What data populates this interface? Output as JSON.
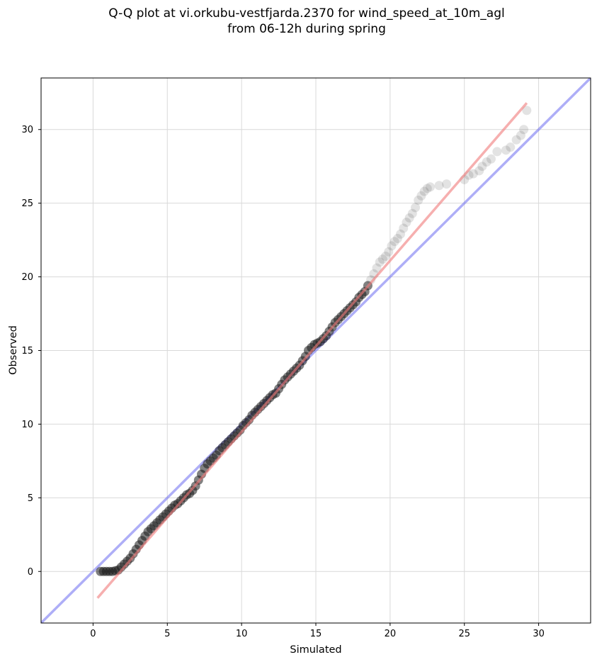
{
  "title_line1": "Q-Q plot at vi.orkubu-vestfjarda.2370 for wind_speed_at_10m_agl",
  "title_line2": "from 06-12h during spring",
  "chart_data": {
    "type": "scatter",
    "xlabel": "Simulated",
    "ylabel": "Observed",
    "xlim": [
      -3.5,
      33.5
    ],
    "ylim": [
      -3.5,
      33.5
    ],
    "xticks": [
      0,
      5,
      10,
      15,
      20,
      25,
      30
    ],
    "yticks": [
      0,
      5,
      10,
      15,
      20,
      25,
      30
    ],
    "grid": true,
    "reference_line": {
      "name": "y = x",
      "color": "#6b6bf0"
    },
    "fit_line": {
      "from": [
        0.3,
        -1.8
      ],
      "to": [
        29.2,
        31.8
      ],
      "color": "#f07a7a"
    },
    "points": [
      [
        0.5,
        0.0
      ],
      [
        0.7,
        0.0
      ],
      [
        0.9,
        0.0
      ],
      [
        1.1,
        0.0
      ],
      [
        1.3,
        0.0
      ],
      [
        1.5,
        0.05
      ],
      [
        1.7,
        0.1
      ],
      [
        1.9,
        0.3
      ],
      [
        2.1,
        0.5
      ],
      [
        2.3,
        0.7
      ],
      [
        2.5,
        0.9
      ],
      [
        2.7,
        1.2
      ],
      [
        2.9,
        1.5
      ],
      [
        3.1,
        1.8
      ],
      [
        3.3,
        2.1
      ],
      [
        3.5,
        2.4
      ],
      [
        3.7,
        2.7
      ],
      [
        3.9,
        2.9
      ],
      [
        4.1,
        3.1
      ],
      [
        4.3,
        3.3
      ],
      [
        4.5,
        3.5
      ],
      [
        4.7,
        3.7
      ],
      [
        4.9,
        3.9
      ],
      [
        5.1,
        4.1
      ],
      [
        5.3,
        4.3
      ],
      [
        5.5,
        4.5
      ],
      [
        5.7,
        4.6
      ],
      [
        5.9,
        4.8
      ],
      [
        6.1,
        5.0
      ],
      [
        6.3,
        5.2
      ],
      [
        6.5,
        5.3
      ],
      [
        6.7,
        5.5
      ],
      [
        6.9,
        5.8
      ],
      [
        7.1,
        6.2
      ],
      [
        7.3,
        6.6
      ],
      [
        7.5,
        7.0
      ],
      [
        7.7,
        7.3
      ],
      [
        7.9,
        7.5
      ],
      [
        8.1,
        7.7
      ],
      [
        8.3,
        7.9
      ],
      [
        8.5,
        8.2
      ],
      [
        8.7,
        8.4
      ],
      [
        8.9,
        8.6
      ],
      [
        9.1,
        8.8
      ],
      [
        9.3,
        9.0
      ],
      [
        9.5,
        9.2
      ],
      [
        9.7,
        9.4
      ],
      [
        9.9,
        9.6
      ],
      [
        10.1,
        9.9
      ],
      [
        10.3,
        10.1
      ],
      [
        10.5,
        10.3
      ],
      [
        10.7,
        10.6
      ],
      [
        10.9,
        10.8
      ],
      [
        11.1,
        11.0
      ],
      [
        11.3,
        11.2
      ],
      [
        11.5,
        11.4
      ],
      [
        11.7,
        11.6
      ],
      [
        11.9,
        11.8
      ],
      [
        12.1,
        12.0
      ],
      [
        12.3,
        12.1
      ],
      [
        12.5,
        12.4
      ],
      [
        12.7,
        12.7
      ],
      [
        12.9,
        13.0
      ],
      [
        13.1,
        13.2
      ],
      [
        13.3,
        13.4
      ],
      [
        13.5,
        13.6
      ],
      [
        13.7,
        13.8
      ],
      [
        13.9,
        14.0
      ],
      [
        14.1,
        14.3
      ],
      [
        14.3,
        14.6
      ],
      [
        14.5,
        15.0
      ],
      [
        14.7,
        15.2
      ],
      [
        14.9,
        15.4
      ],
      [
        15.1,
        15.5
      ],
      [
        15.3,
        15.6
      ],
      [
        15.5,
        15.8
      ],
      [
        15.7,
        16.0
      ],
      [
        15.9,
        16.3
      ],
      [
        16.1,
        16.6
      ],
      [
        16.3,
        16.9
      ],
      [
        16.5,
        17.1
      ],
      [
        16.7,
        17.3
      ],
      [
        16.9,
        17.5
      ],
      [
        17.1,
        17.7
      ],
      [
        17.3,
        17.9
      ],
      [
        17.5,
        18.1
      ],
      [
        17.7,
        18.3
      ],
      [
        17.9,
        18.6
      ],
      [
        18.1,
        18.8
      ],
      [
        18.3,
        19.0
      ],
      [
        18.5,
        19.4
      ],
      [
        18.7,
        19.8
      ],
      [
        18.9,
        20.2
      ],
      [
        19.1,
        20.6
      ],
      [
        19.3,
        21.0
      ],
      [
        19.5,
        21.2
      ],
      [
        19.7,
        21.4
      ],
      [
        19.9,
        21.7
      ],
      [
        20.1,
        22.1
      ],
      [
        20.3,
        22.4
      ],
      [
        20.5,
        22.6
      ],
      [
        20.7,
        22.9
      ],
      [
        20.9,
        23.3
      ],
      [
        21.1,
        23.7
      ],
      [
        21.3,
        24.0
      ],
      [
        21.5,
        24.3
      ],
      [
        21.7,
        24.7
      ],
      [
        21.9,
        25.2
      ],
      [
        22.1,
        25.5
      ],
      [
        22.3,
        25.8
      ],
      [
        22.5,
        26.0
      ],
      [
        22.7,
        26.1
      ],
      [
        23.3,
        26.2
      ],
      [
        23.8,
        26.3
      ],
      [
        25.0,
        26.6
      ],
      [
        25.3,
        26.9
      ],
      [
        25.6,
        27.0
      ],
      [
        26.0,
        27.2
      ],
      [
        26.2,
        27.5
      ],
      [
        26.5,
        27.8
      ],
      [
        26.8,
        28.0
      ],
      [
        27.2,
        28.5
      ],
      [
        27.8,
        28.6
      ],
      [
        28.1,
        28.8
      ],
      [
        28.5,
        29.3
      ],
      [
        28.8,
        29.6
      ],
      [
        29.0,
        30.0
      ],
      [
        29.2,
        31.3
      ]
    ]
  }
}
